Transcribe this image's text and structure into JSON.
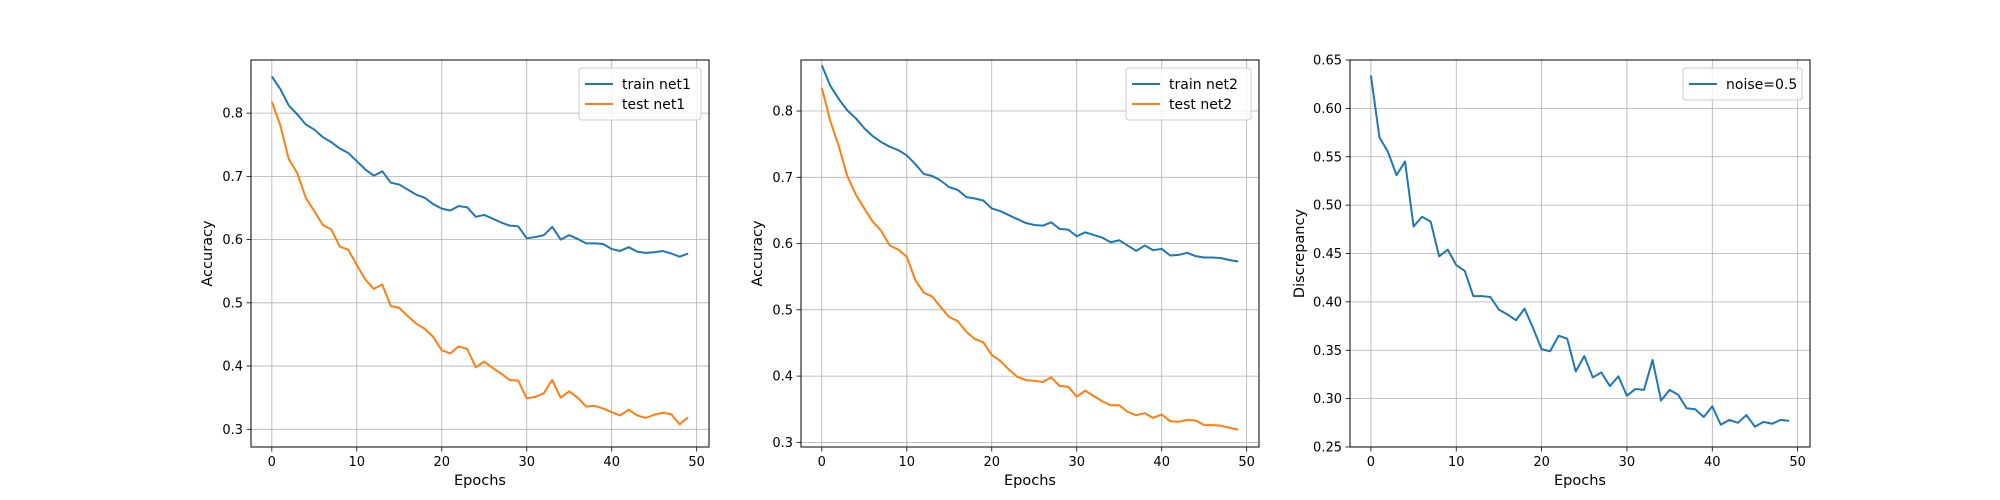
{
  "chart_data": [
    {
      "type": "line",
      "xlabel": "Epochs",
      "ylabel": "Accuracy",
      "xlim": [
        -2.45,
        51.45
      ],
      "ylim": [
        0.272,
        0.884
      ],
      "xticks": [
        0,
        10,
        20,
        30,
        40,
        50
      ],
      "yticks": [
        0.3,
        0.4,
        0.5,
        0.6,
        0.7,
        0.8
      ],
      "tick_labels_x": [
        "0",
        "10",
        "20",
        "30",
        "40",
        "50"
      ],
      "tick_labels_y": [
        "0.3",
        "0.4",
        "0.5",
        "0.6",
        "0.7",
        "0.8"
      ],
      "grid": true,
      "legend": "top-right",
      "x": [
        0,
        1,
        2,
        3,
        4,
        5,
        6,
        7,
        8,
        9,
        10,
        11,
        12,
        13,
        14,
        15,
        16,
        17,
        18,
        19,
        20,
        21,
        22,
        23,
        24,
        25,
        26,
        27,
        28,
        29,
        30,
        31,
        32,
        33,
        34,
        35,
        36,
        37,
        38,
        39,
        40,
        41,
        42,
        43,
        44,
        45,
        46,
        47,
        48,
        49
      ],
      "series": [
        {
          "name": "train net1",
          "color": "#1f77b4",
          "values": [
            0.858,
            0.838,
            0.812,
            0.798,
            0.782,
            0.774,
            0.762,
            0.754,
            0.744,
            0.737,
            0.724,
            0.711,
            0.701,
            0.708,
            0.69,
            0.687,
            0.679,
            0.671,
            0.666,
            0.656,
            0.649,
            0.646,
            0.653,
            0.651,
            0.636,
            0.639,
            0.633,
            0.627,
            0.622,
            0.621,
            0.602,
            0.604,
            0.607,
            0.62,
            0.6,
            0.607,
            0.601,
            0.594,
            0.594,
            0.593,
            0.585,
            0.582,
            0.588,
            0.581,
            0.579,
            0.58,
            0.582,
            0.578,
            0.573,
            0.578
          ]
        },
        {
          "name": "test net1",
          "color": "#ff7f0e",
          "values": [
            0.818,
            0.781,
            0.727,
            0.705,
            0.666,
            0.645,
            0.623,
            0.616,
            0.589,
            0.584,
            0.56,
            0.537,
            0.522,
            0.529,
            0.495,
            0.492,
            0.479,
            0.467,
            0.459,
            0.446,
            0.425,
            0.42,
            0.431,
            0.427,
            0.398,
            0.407,
            0.397,
            0.388,
            0.378,
            0.377,
            0.349,
            0.351,
            0.357,
            0.378,
            0.35,
            0.36,
            0.35,
            0.336,
            0.337,
            0.333,
            0.327,
            0.322,
            0.331,
            0.322,
            0.318,
            0.323,
            0.326,
            0.324,
            0.308,
            0.319
          ]
        }
      ]
    },
    {
      "type": "line",
      "xlabel": "Epochs",
      "ylabel": "Accuracy",
      "xlim": [
        -2.45,
        51.45
      ],
      "ylim": [
        0.293,
        0.877
      ],
      "xticks": [
        0,
        10,
        20,
        30,
        40,
        50
      ],
      "yticks": [
        0.3,
        0.4,
        0.5,
        0.6,
        0.7,
        0.8
      ],
      "tick_labels_x": [
        "0",
        "10",
        "20",
        "30",
        "40",
        "50"
      ],
      "tick_labels_y": [
        "0.3",
        "0.4",
        "0.5",
        "0.6",
        "0.7",
        "0.8"
      ],
      "grid": true,
      "legend": "top-right",
      "x": [
        0,
        1,
        2,
        3,
        4,
        5,
        6,
        7,
        8,
        9,
        10,
        11,
        12,
        13,
        14,
        15,
        16,
        17,
        18,
        19,
        20,
        21,
        22,
        23,
        24,
        25,
        26,
        27,
        28,
        29,
        30,
        31,
        32,
        33,
        34,
        35,
        36,
        37,
        38,
        39,
        40,
        41,
        42,
        43,
        44,
        45,
        46,
        47,
        48,
        49
      ],
      "series": [
        {
          "name": "train net2",
          "color": "#1f77b4",
          "values": [
            0.869,
            0.838,
            0.818,
            0.801,
            0.789,
            0.774,
            0.762,
            0.753,
            0.746,
            0.741,
            0.733,
            0.72,
            0.705,
            0.702,
            0.695,
            0.685,
            0.681,
            0.67,
            0.668,
            0.665,
            0.653,
            0.649,
            0.643,
            0.637,
            0.631,
            0.628,
            0.627,
            0.632,
            0.622,
            0.621,
            0.611,
            0.617,
            0.613,
            0.609,
            0.602,
            0.605,
            0.597,
            0.589,
            0.597,
            0.59,
            0.592,
            0.582,
            0.583,
            0.586,
            0.581,
            0.579,
            0.579,
            0.578,
            0.575,
            0.573
          ]
        },
        {
          "name": "test net2",
          "color": "#ff7f0e",
          "values": [
            0.835,
            0.785,
            0.747,
            0.702,
            0.674,
            0.653,
            0.633,
            0.619,
            0.597,
            0.591,
            0.58,
            0.545,
            0.526,
            0.52,
            0.504,
            0.489,
            0.483,
            0.467,
            0.456,
            0.451,
            0.432,
            0.423,
            0.41,
            0.399,
            0.394,
            0.393,
            0.391,
            0.398,
            0.385,
            0.384,
            0.369,
            0.378,
            0.37,
            0.362,
            0.356,
            0.356,
            0.346,
            0.341,
            0.344,
            0.337,
            0.342,
            0.332,
            0.331,
            0.334,
            0.333,
            0.326,
            0.326,
            0.325,
            0.322,
            0.319
          ]
        }
      ]
    },
    {
      "type": "line",
      "xlabel": "Epochs",
      "ylabel": "Discrepancy",
      "xlim": [
        -2.45,
        51.45
      ],
      "ylim": [
        0.25,
        0.65
      ],
      "xticks": [
        0,
        10,
        20,
        30,
        40,
        50
      ],
      "yticks": [
        0.25,
        0.3,
        0.35,
        0.4,
        0.45,
        0.5,
        0.55,
        0.6,
        0.65
      ],
      "tick_labels_x": [
        "0",
        "10",
        "20",
        "30",
        "40",
        "50"
      ],
      "tick_labels_y": [
        "0.25",
        "0.30",
        "0.35",
        "0.40",
        "0.45",
        "0.50",
        "0.55",
        "0.60",
        "0.65"
      ],
      "grid": true,
      "legend": "top-right",
      "x": [
        0,
        1,
        2,
        3,
        4,
        5,
        6,
        7,
        8,
        9,
        10,
        11,
        12,
        13,
        14,
        15,
        16,
        17,
        18,
        19,
        20,
        21,
        22,
        23,
        24,
        25,
        26,
        27,
        28,
        29,
        30,
        31,
        32,
        33,
        34,
        35,
        36,
        37,
        38,
        39,
        40,
        41,
        42,
        43,
        44,
        45,
        46,
        47,
        48,
        49
      ],
      "series": [
        {
          "name": "noise=0.5",
          "color": "#1f77b4",
          "values": [
            0.634,
            0.57,
            0.555,
            0.531,
            0.545,
            0.478,
            0.488,
            0.483,
            0.447,
            0.454,
            0.438,
            0.432,
            0.406,
            0.406,
            0.405,
            0.392,
            0.387,
            0.381,
            0.393,
            0.373,
            0.351,
            0.349,
            0.365,
            0.362,
            0.328,
            0.344,
            0.322,
            0.327,
            0.313,
            0.323,
            0.303,
            0.31,
            0.309,
            0.34,
            0.298,
            0.309,
            0.304,
            0.29,
            0.289,
            0.281,
            0.292,
            0.273,
            0.278,
            0.275,
            0.283,
            0.271,
            0.276,
            0.274,
            0.278,
            0.277
          ]
        }
      ]
    }
  ]
}
